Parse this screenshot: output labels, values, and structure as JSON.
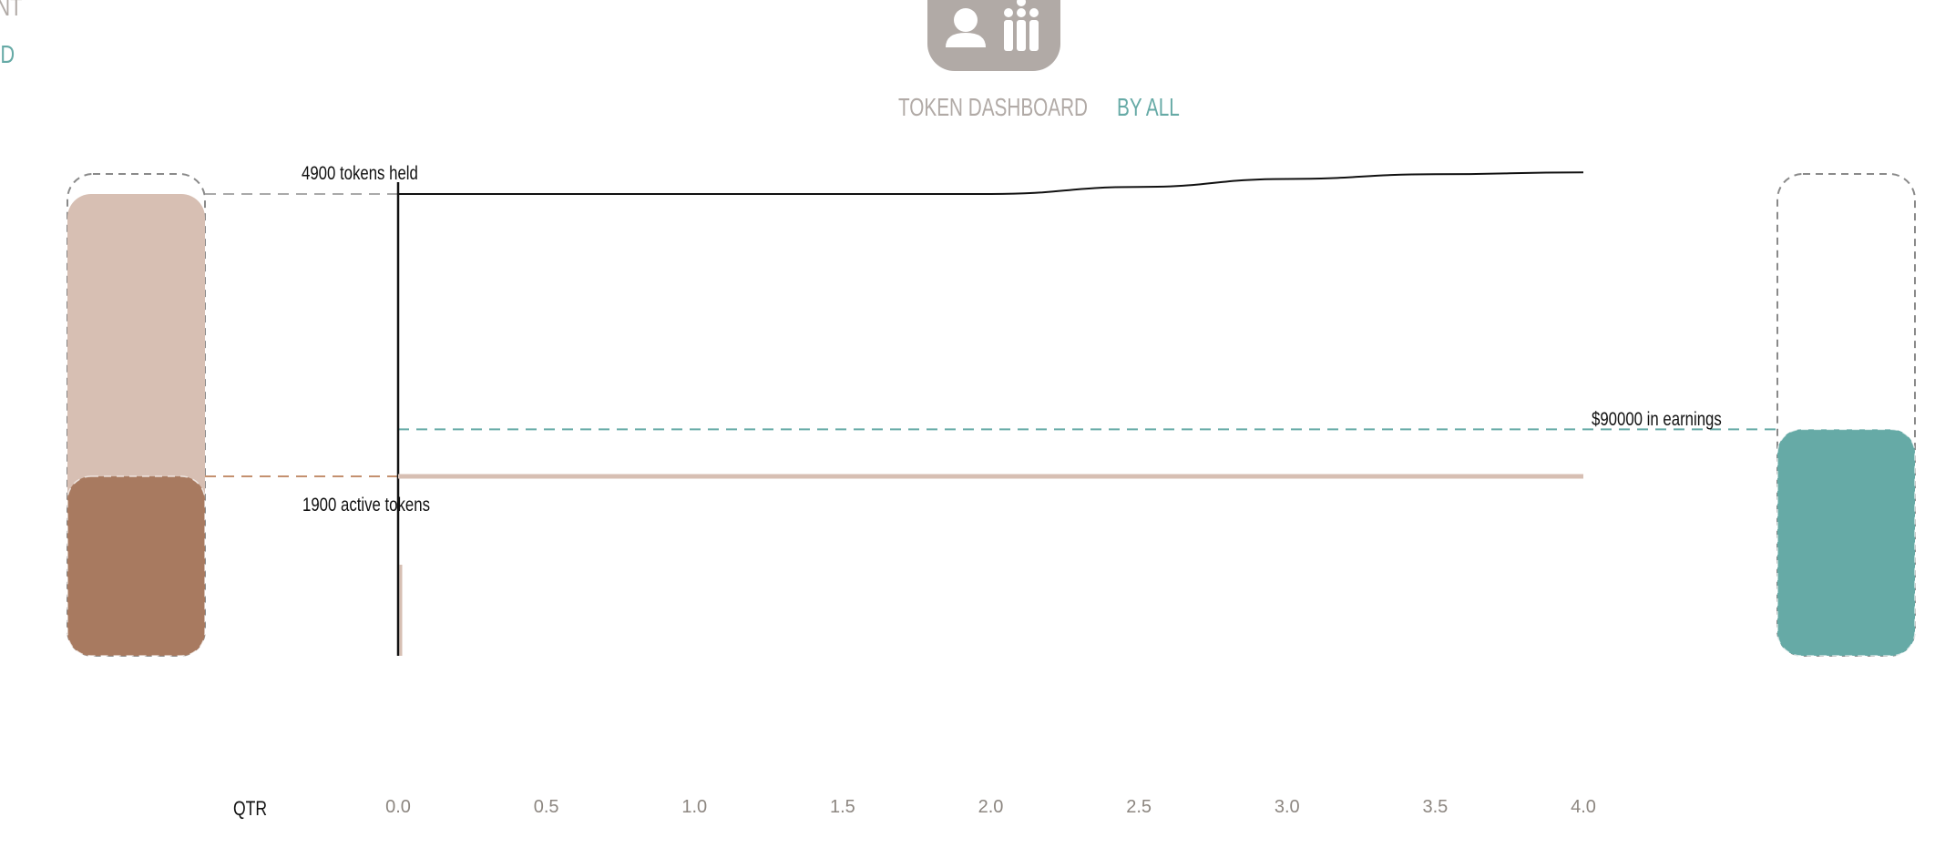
{
  "nav": {
    "development_label": "PMENT",
    "board_label": "ARD"
  },
  "header": {
    "icon": "user-group-icon",
    "icon_color": "#b1aaa6"
  },
  "tabs": [
    {
      "label": "TOKEN DASHBOARD",
      "color": "#b1aaa6"
    },
    {
      "label": "BY ALL",
      "color": "#66aaa6"
    }
  ],
  "chart_data": {
    "type": "line",
    "xlabel": "QTR",
    "x_ticks": [
      0.0,
      0.5,
      1.0,
      1.5,
      2.0,
      2.5,
      3.0,
      3.5,
      4.0
    ],
    "xlim": [
      0,
      4
    ],
    "grid": false,
    "series": [
      {
        "role": "tokens_held",
        "color": "#111111",
        "points": [
          [
            0,
            4900
          ],
          [
            0.5,
            4900
          ],
          [
            1.0,
            4900
          ],
          [
            1.5,
            4900
          ],
          [
            2.0,
            4900
          ],
          [
            2.5,
            4975
          ],
          [
            3.0,
            5060
          ],
          [
            3.5,
            5110
          ],
          [
            4.0,
            5130
          ]
        ]
      },
      {
        "role": "active_tokens",
        "color": "#d7bfb3",
        "points": [
          [
            0,
            1900
          ],
          [
            4.0,
            1900
          ]
        ]
      }
    ],
    "annotations": {
      "tokens_held": "4900 tokens held",
      "active_tokens": "1900 active tokens",
      "earnings": "$90000 in earnings"
    },
    "tokens_held_value": 4900,
    "active_tokens_value": 1900,
    "earnings_value": 90000,
    "earnings_fill_fraction": 0.47,
    "colors": {
      "held": "#d7bfb3",
      "active": "#a87a60",
      "earnings": "#66aaa6",
      "outline": "#8a8a8a"
    }
  }
}
